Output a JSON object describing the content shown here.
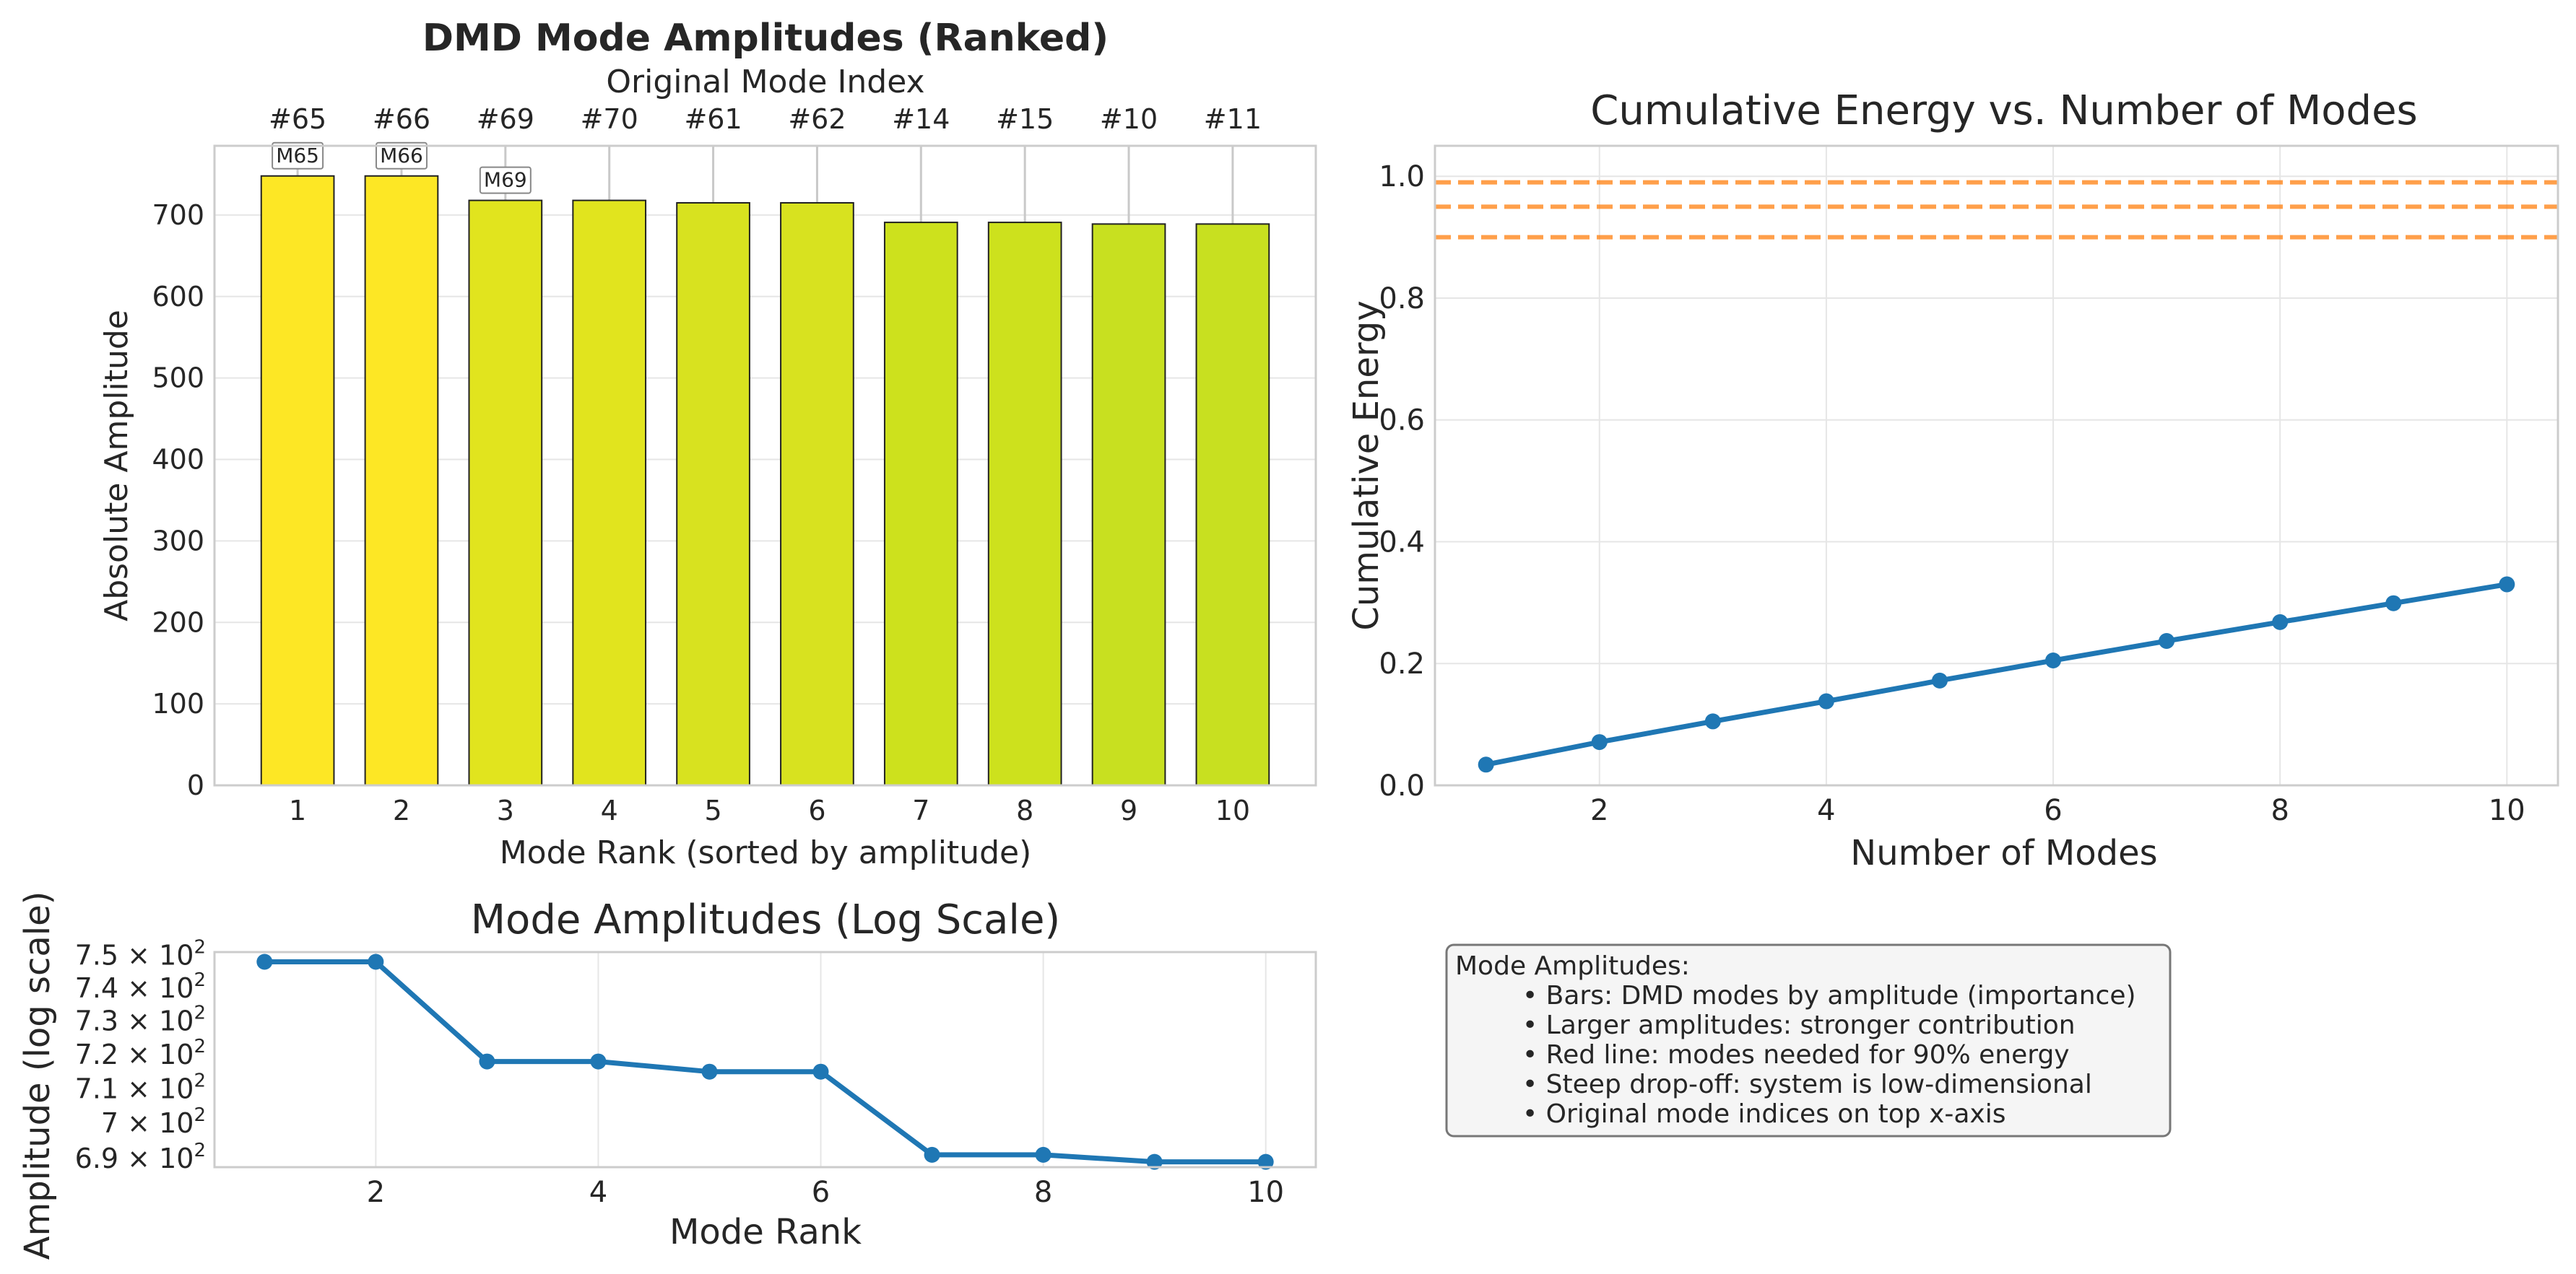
{
  "chart_data": [
    {
      "type": "bar",
      "title": "DMD Mode Amplitudes (Ranked)",
      "xlabel": "Mode Rank (sorted by amplitude)",
      "ylabel": "Absolute Amplitude",
      "top_xlabel": "Original Mode Index",
      "categories": [
        "1",
        "2",
        "3",
        "4",
        "5",
        "6",
        "7",
        "8",
        "9",
        "10"
      ],
      "top_tick_labels": [
        "#65",
        "#66",
        "#69",
        "#70",
        "#61",
        "#62",
        "#14",
        "#15",
        "#10",
        "#11"
      ],
      "values": [
        748,
        748,
        718,
        718,
        715,
        715,
        691,
        691,
        689,
        689
      ],
      "bar_colors": [
        "#fde725",
        "#fde725",
        "#e1e41e",
        "#e1e41e",
        "#d8e21f",
        "#d8e21f",
        "#cde11d",
        "#cde11d",
        "#c8e020",
        "#c8e020"
      ],
      "annotations": [
        {
          "rank": 1,
          "text": "M65"
        },
        {
          "rank": 2,
          "text": "M66"
        },
        {
          "rank": 3,
          "text": "M69"
        }
      ],
      "ylim": [
        0,
        785
      ],
      "yticks": [
        0,
        100,
        200,
        300,
        400,
        500,
        600,
        700
      ],
      "grid": true
    },
    {
      "type": "line",
      "title": "Cumulative Energy vs. Number of Modes",
      "xlabel": "Number of Modes",
      "ylabel": "Cumulative Energy",
      "x": [
        1,
        2,
        3,
        4,
        5,
        6,
        7,
        8,
        9,
        10
      ],
      "y": [
        0.034,
        0.071,
        0.105,
        0.138,
        0.172,
        0.205,
        0.237,
        0.268,
        0.299,
        0.33
      ],
      "xlim": [
        0.55,
        10.45
      ],
      "ylim": [
        0.0,
        1.05
      ],
      "xticks": [
        2,
        4,
        6,
        8,
        10
      ],
      "yticks": [
        0.0,
        0.2,
        0.4,
        0.6,
        0.8,
        1.0
      ],
      "ytick_labels": [
        "0.0",
        "0.2",
        "0.4",
        "0.6",
        "0.8",
        "1.0"
      ],
      "hlines": [
        0.9,
        0.95,
        0.99
      ],
      "line_color": "#1f77b4",
      "hline_color": "#ff7f0e",
      "grid": true
    },
    {
      "type": "line",
      "title": "Mode Amplitudes (Log Scale)",
      "xlabel": "Mode Rank",
      "ylabel": "Amplitude (log scale)",
      "yscale": "log",
      "x": [
        1,
        2,
        3,
        4,
        5,
        6,
        7,
        8,
        9,
        10
      ],
      "y": [
        748,
        748,
        718,
        718,
        715,
        715,
        691,
        691,
        689,
        689
      ],
      "xlim": [
        0.55,
        10.45
      ],
      "ylim": [
        687.5,
        751
      ],
      "xticks": [
        2,
        4,
        6,
        8,
        10
      ],
      "yticks": [
        690,
        700,
        710,
        720,
        730,
        740,
        750
      ],
      "ytick_mantissas": [
        "6.9",
        "7",
        "7.1",
        "7.2",
        "7.3",
        "7.4",
        "7.5"
      ],
      "line_color": "#1f77b4",
      "grid": true
    }
  ],
  "info_box": {
    "title": "Mode Amplitudes:",
    "lines": [
      "• Bars: DMD modes by amplitude (importance)",
      "• Larger amplitudes: stronger contribution",
      "• Red line: modes needed for 90% energy",
      "• Steep drop-off: system is low-dimensional",
      "• Original mode indices on top x-axis"
    ]
  }
}
